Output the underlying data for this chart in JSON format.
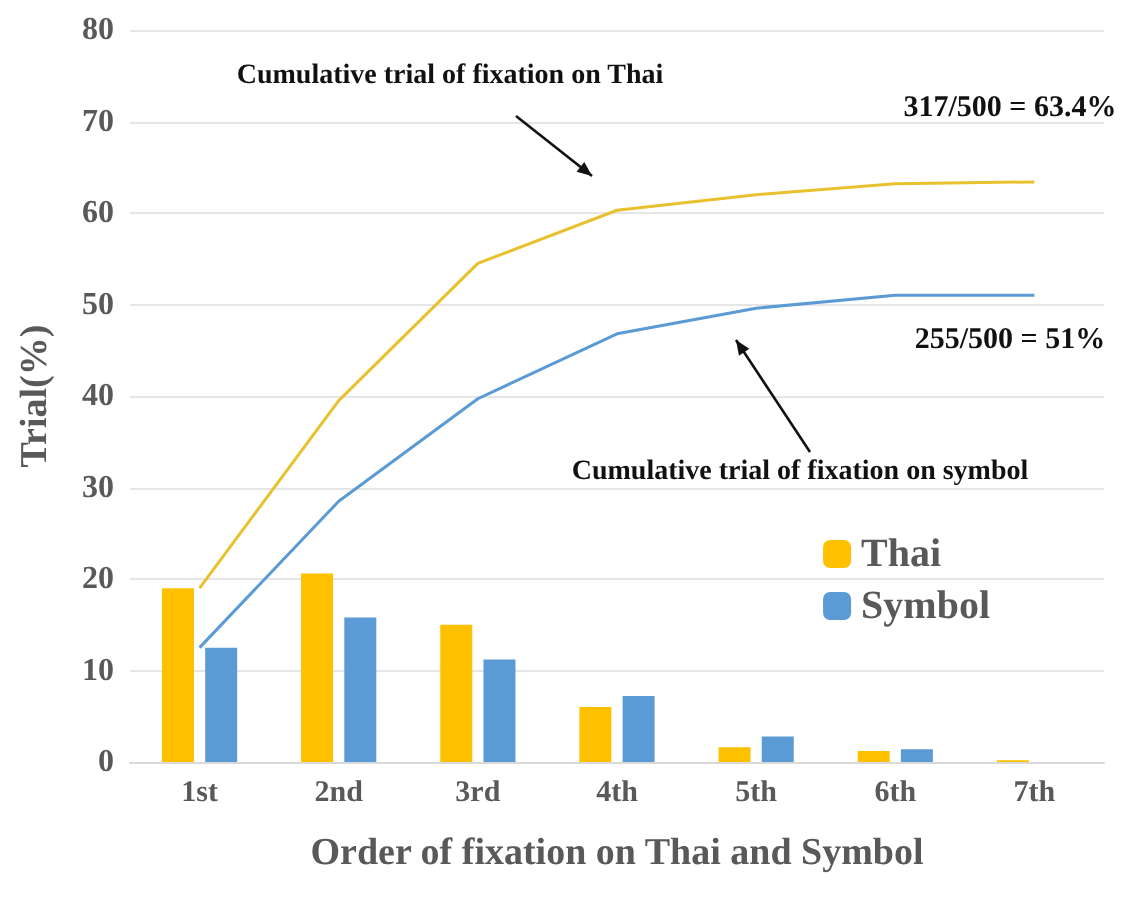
{
  "chart_data": {
    "type": "bar",
    "xlabel": "Order of fixation on Thai and Symbol",
    "ylabel": "Trial(%)",
    "categories": [
      "1st",
      "2nd",
      "3rd",
      "4th",
      "5th",
      "6th",
      "7th"
    ],
    "series": [
      {
        "name": "Thai",
        "color": "#ffc000",
        "values": [
          19,
          20.6,
          15,
          6,
          1.6,
          1.2,
          0.2
        ]
      },
      {
        "name": "Symbol",
        "color": "#5b9bd5",
        "values": [
          12.5,
          15.8,
          11.2,
          7.2,
          2.8,
          1.4,
          0
        ]
      },
      {
        "type": "line",
        "color": "#e8c12f",
        "values": [
          19,
          39.5,
          54.5,
          60.3,
          62,
          63.2,
          63.4
        ]
      },
      {
        "type": "line",
        "color": "#5b9bd5",
        "values": [
          12.5,
          28.5,
          39.7,
          46.8,
          49.6,
          51,
          51
        ]
      }
    ],
    "annotations": [
      "Cumulative trial of fixation on Thai",
      "Cumulative trial of fixation on symbol",
      "317/500 = 63.4%",
      "255/500 = 51%"
    ],
    "ylim": [
      0,
      80
    ],
    "yticks": [
      0,
      10,
      20,
      30,
      40,
      50,
      60,
      70,
      80
    ],
    "grid": "y",
    "legend": "right",
    "marker": "none",
    "line_style": "solid"
  }
}
